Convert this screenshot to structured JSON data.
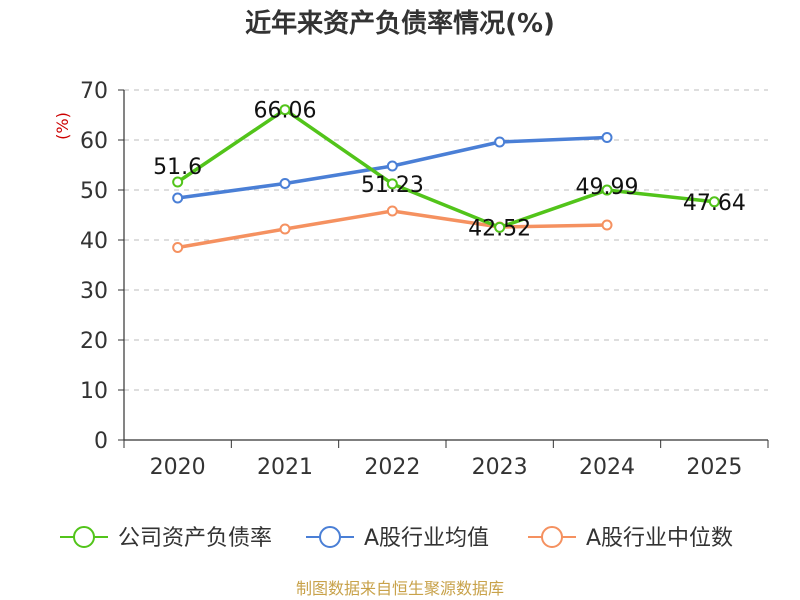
{
  "chart_data": {
    "type": "line",
    "title": "近年来资产负债率情况(%)",
    "ylabel": "(%)",
    "xlabel": "",
    "ylim": [
      0,
      70
    ],
    "yticks": [
      0,
      10,
      20,
      30,
      40,
      50,
      60,
      70
    ],
    "categories": [
      "2020",
      "2021",
      "2022",
      "2023",
      "2024",
      "2025"
    ],
    "grid": true,
    "legend_position": "bottom",
    "series": [
      {
        "name": "公司资产负债率",
        "color": "#52c41a",
        "values": [
          51.6,
          66.06,
          51.23,
          42.52,
          49.99,
          47.64
        ],
        "data_labels": [
          "51.6",
          "66.06",
          "51.23",
          "42.52",
          "49.99",
          "47.64"
        ]
      },
      {
        "name": "A股行业均值",
        "color": "#4a7fd6",
        "values": [
          48.4,
          51.3,
          54.8,
          59.6,
          60.5,
          null
        ]
      },
      {
        "name": "A股行业中位数",
        "color": "#f59160",
        "values": [
          38.5,
          42.2,
          45.8,
          42.6,
          43.0,
          null
        ]
      }
    ],
    "source": "制图数据来自恒生聚源数据库"
  }
}
